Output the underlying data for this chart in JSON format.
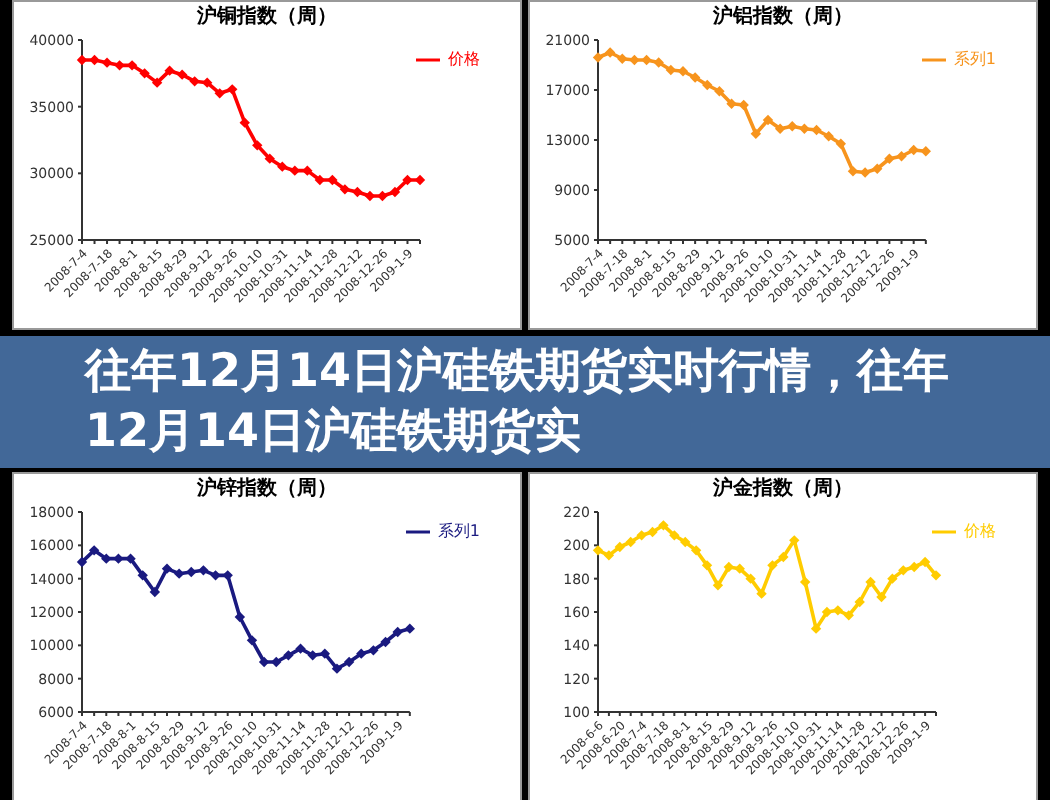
{
  "chart_data": [
    {
      "type": "line",
      "title": "沪铜指数（周）",
      "categories": [
        "2008-7-4",
        null,
        "2008-7-18",
        null,
        "2008-8-1",
        null,
        "2008-8-15",
        null,
        "2008-8-29",
        null,
        "2008-9-12",
        null,
        "2008-9-26",
        null,
        "2008-10-10",
        null,
        "2008-10-31",
        null,
        "2008-11-14",
        null,
        "2008-11-28",
        null,
        "2008-12-12",
        null,
        "2008-12-26",
        null,
        "2009-1-9",
        null
      ],
      "series": [
        {
          "name": "价格",
          "color": "#ff0000",
          "values": [
            38500,
            38500,
            38300,
            38100,
            38100,
            37500,
            36800,
            37700,
            37400,
            36900,
            36800,
            36000,
            36300,
            33800,
            32100,
            31100,
            30500,
            30200,
            30200,
            29500,
            29500,
            28800,
            28600,
            28300,
            28300,
            28600,
            29500,
            29500
          ]
        }
      ],
      "ylim": [
        25000,
        40000
      ],
      "yticks": [
        25000,
        30000,
        35000,
        40000
      ],
      "legend": "top right",
      "marker": "diamond",
      "grid": false
    },
    {
      "type": "line",
      "title": "沪铝指数（周）",
      "categories": [
        "2008-7-4",
        null,
        "2008-7-18",
        null,
        "2008-8-1",
        null,
        "2008-8-15",
        null,
        "2008-8-29",
        null,
        "2008-9-12",
        null,
        "2008-9-26",
        null,
        "2008-10-10",
        null,
        "2008-10-31",
        null,
        "2008-11-14",
        null,
        "2008-11-28",
        null,
        "2008-12-12",
        null,
        "2008-12-26",
        null,
        "2009-1-9",
        null
      ],
      "series": [
        {
          "name": "系列1",
          "color": "#f7941d",
          "values": [
            19600,
            20000,
            19500,
            19400,
            19400,
            19200,
            18600,
            18500,
            18000,
            17400,
            16900,
            15900,
            15800,
            13500,
            14600,
            13900,
            14100,
            13900,
            13800,
            13300,
            12700,
            10500,
            10400,
            10700,
            11500,
            11700,
            12200,
            12100
          ]
        }
      ],
      "ylim": [
        5000,
        21000
      ],
      "yticks": [
        5000,
        9000,
        13000,
        17000,
        21000
      ],
      "legend": "top right",
      "marker": "diamond",
      "grid": false
    },
    {
      "type": "other",
      "title": "往年12月14日沪硅铁期货实时行情，往年12月14日沪硅铁期货实"
    },
    {
      "type": "line",
      "title": "沪锌指数（周）",
      "categories": [
        "2008-7-4",
        null,
        "2008-7-18",
        null,
        "2008-8-1",
        null,
        "2008-8-15",
        null,
        "2008-8-29",
        null,
        "2008-9-12",
        null,
        "2008-9-26",
        null,
        "2008-10-10",
        null,
        "2008-10-31",
        null,
        "2008-11-14",
        null,
        "2008-11-28",
        null,
        "2008-12-12",
        null,
        "2008-12-26",
        null,
        "2009-1-9",
        null
      ],
      "series": [
        {
          "name": "系列1",
          "color": "#1a1a80",
          "values": [
            15000,
            15700,
            15200,
            15200,
            15200,
            14200,
            13200,
            14600,
            14300,
            14400,
            14500,
            14200,
            14200,
            11700,
            10300,
            9000,
            9000,
            9400,
            9800,
            9400,
            9500,
            8600,
            9000,
            9500,
            9700,
            10200,
            10800,
            11000
          ]
        }
      ],
      "ylim": [
        6000,
        18000
      ],
      "yticks": [
        6000,
        8000,
        10000,
        12000,
        14000,
        16000,
        18000
      ],
      "legend": "top right",
      "marker": "diamond",
      "grid": false
    },
    {
      "type": "line",
      "title": "沪金指数（周）",
      "categories": [
        "2008-6-6",
        null,
        "2008-6-20",
        null,
        "2008-7-4",
        null,
        "2008-7-18",
        null,
        "2008-8-1",
        null,
        "2008-8-15",
        null,
        "2008-8-29",
        null,
        "2008-9-12",
        null,
        "2008-9-26",
        null,
        "2008-10-10",
        null,
        "2008-10-31",
        null,
        "2008-11-14",
        null,
        "2008-11-28",
        null,
        "2008-12-12",
        null,
        "2008-12-26",
        null,
        "2009-1-9",
        null
      ],
      "series": [
        {
          "name": "价格",
          "color": "#ffcc00",
          "values": [
            197,
            194,
            199,
            202,
            206,
            208,
            212,
            206,
            202,
            197,
            188,
            176,
            187,
            186,
            180,
            171,
            188,
            193,
            203,
            178,
            150,
            160,
            161,
            158,
            166,
            178,
            169,
            180,
            185,
            187,
            190,
            182
          ]
        }
      ],
      "ylim": [
        100,
        220
      ],
      "yticks": [
        100,
        120,
        140,
        160,
        180,
        200,
        220
      ],
      "legend": "top right",
      "marker": "diamond",
      "grid": false
    }
  ]
}
